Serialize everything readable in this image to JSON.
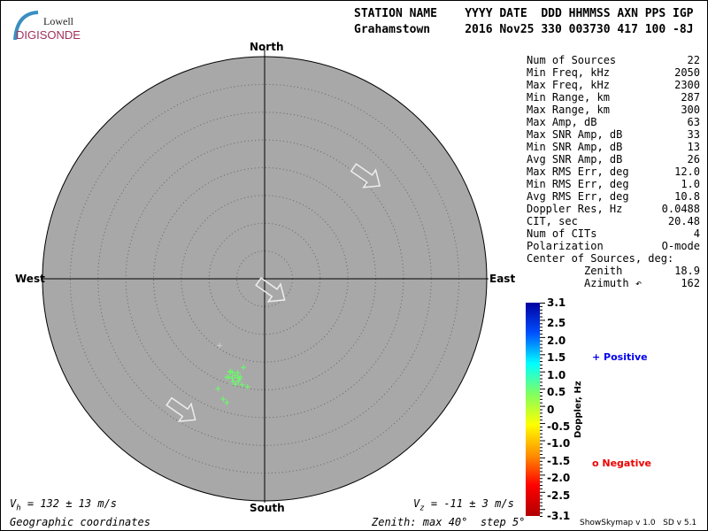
{
  "logo": {
    "line1": "Lowell",
    "line2": "DIGISONDE"
  },
  "header": {
    "labels": "STATION NAME    YYYY DATE  DDD HHMMSS AXN PPS IGP",
    "values": "Grahamstown     2016 Nov25 330 003730 417 100 -8J"
  },
  "directions": {
    "north": "North",
    "south": "South",
    "east": "East",
    "west": "West"
  },
  "stats": [
    {
      "label": "Num of Sources",
      "value": "22"
    },
    {
      "label": "Min Freq, kHz",
      "value": "2050"
    },
    {
      "label": "Max Freq, kHz",
      "value": "2300"
    },
    {
      "label": "Min Range, km",
      "value": "287"
    },
    {
      "label": "Max Range, km",
      "value": "300"
    },
    {
      "label": "Max Amp, dB",
      "value": "63"
    },
    {
      "label": "Max SNR Amp, dB",
      "value": "33"
    },
    {
      "label": "Min SNR Amp, dB",
      "value": "13"
    },
    {
      "label": "Avg SNR Amp, dB",
      "value": "26"
    },
    {
      "label": "Max RMS Err, deg",
      "value": "12.0"
    },
    {
      "label": "Min RMS Err, deg",
      "value": "1.0"
    },
    {
      "label": "Avg RMS Err, deg",
      "value": "10.8"
    },
    {
      "label": "Doppler Res, Hz",
      "value": "0.0488"
    },
    {
      "label": "CIT, sec",
      "value": "20.48"
    },
    {
      "label": "Num of CITs",
      "value": "4"
    },
    {
      "label": "Polarization",
      "value": "O-mode"
    },
    {
      "label": "Center of Sources, deg:",
      "value": ""
    },
    {
      "label": "         Zenith",
      "value": "18.9"
    },
    {
      "label": "         Azimuth ↶",
      "value": "162"
    }
  ],
  "colorbar": {
    "title": "Doppler, Hz",
    "ticks": [
      "3.1",
      "2.5",
      "2.0",
      "1.5",
      "1.0",
      "0.5",
      "0",
      "-0.5",
      "-1.0",
      "-1.5",
      "-2.0",
      "-2.5",
      "-3.1"
    ],
    "range": [
      -3.1,
      3.1
    ]
  },
  "legend": {
    "positive": "+ Positive",
    "negative": "o Negative",
    "positive_color": "#0000ee",
    "negative_color": "#ee0000"
  },
  "footer": {
    "vh": "V",
    "vh_sub": "h",
    "vh_rest": " = 132 ± 13 m/s",
    "vz": "V",
    "vz_sub": "z",
    "vz_rest": " = -11 ± 3 m/s",
    "coords": "Geographic coordinates",
    "zenith": "Zenith: max 40°  step 5°",
    "version": "ShowSkymap v 1.0   SD v 5.1"
  },
  "skymap": {
    "zenith_max": 40,
    "zenith_step": 5,
    "disk_color": "#a8a8a8",
    "sources": [
      {
        "zenith": 14.5,
        "azimuth": 214,
        "color": "#cccccc"
      },
      {
        "zenith": 16.4,
        "azimuth": 193.5,
        "color": "#66ff66"
      },
      {
        "zenith": 17.9,
        "azimuth": 200,
        "color": "#66ff66"
      },
      {
        "zenith": 17.6,
        "azimuth": 196,
        "color": "#66ff66"
      },
      {
        "zenith": 18.2,
        "azimuth": 194,
        "color": "#66ff66"
      },
      {
        "zenith": 18.8,
        "azimuth": 200,
        "color": "#66ff66"
      },
      {
        "zenith": 19.4,
        "azimuth": 197,
        "color": "#66ff66"
      },
      {
        "zenith": 18.6,
        "azimuth": 194,
        "color": "#66ff66"
      },
      {
        "zenith": 19.7,
        "azimuth": 195.5,
        "color": "#66ff66"
      },
      {
        "zenith": 19.5,
        "azimuth": 192,
        "color": "#66ff66"
      },
      {
        "zenith": 19.7,
        "azimuth": 189,
        "color": "#66ff66"
      },
      {
        "zenith": 21.5,
        "azimuth": 203,
        "color": "#66ff66"
      },
      {
        "zenith": 22.9,
        "azimuth": 199,
        "color": "#66ff66"
      },
      {
        "zenith": 23.3,
        "azimuth": 197,
        "color": "#66ff66"
      },
      {
        "zenith": 17.8,
        "azimuth": 199,
        "color": "#66ff66"
      },
      {
        "zenith": 18.2,
        "azimuth": 197,
        "color": "#66ff66"
      },
      {
        "zenith": 18.8,
        "azimuth": 198,
        "color": "#66ff66"
      },
      {
        "zenith": 19.1,
        "azimuth": 194.5,
        "color": "#66ff66"
      },
      {
        "zenith": 17.8,
        "azimuth": 200.4,
        "color": "#66ff66"
      },
      {
        "zenith": 18.4,
        "azimuth": 195,
        "color": "#66ff66"
      },
      {
        "zenith": 19.0,
        "azimuth": 201,
        "color": "#66ff66"
      },
      {
        "zenith": 19.9,
        "azimuth": 198,
        "color": "#aaaaaa"
      }
    ],
    "arrows": [
      {
        "zenith": 26,
        "azimuth": 45
      },
      {
        "zenith": 2.5,
        "azimuth": 150
      },
      {
        "zenith": 28,
        "azimuth": 212
      }
    ],
    "arrow_direction": 125
  }
}
